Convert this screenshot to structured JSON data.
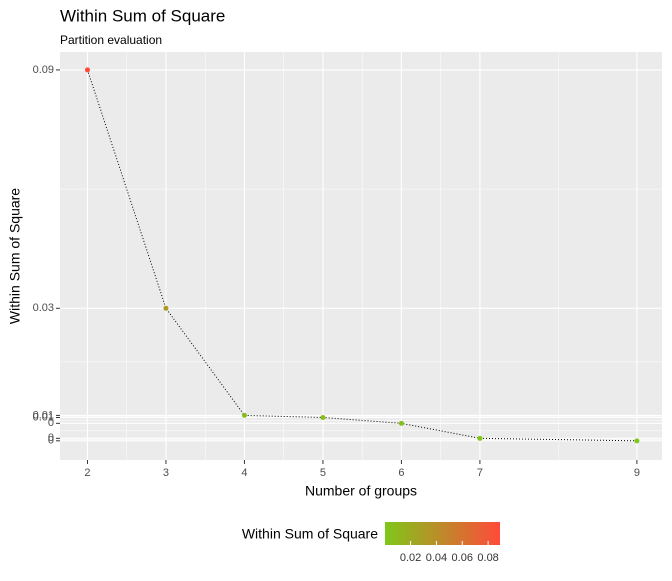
{
  "chart_data": {
    "type": "line",
    "title": "Within Sum of Square",
    "subtitle": "Partition evaluation",
    "x_label": "Number of groups",
    "y_label": "Within Sum of Square",
    "x": [
      2,
      3,
      4,
      5,
      6,
      7,
      9
    ],
    "values": [
      0.0892,
      0.032,
      0.0063,
      0.0058,
      0.0044,
      0.0008,
      0.0002
    ],
    "xlim": [
      1.65,
      9.32
    ],
    "ylim": [
      -0.0044,
      0.0935
    ],
    "xticks": [
      2,
      3,
      4,
      5,
      6,
      7,
      9
    ],
    "yticks": [
      {
        "value": 0.0892,
        "label": "0.09"
      },
      {
        "value": 0.032,
        "label": "0.03"
      },
      {
        "value": 0.0063,
        "label": "0.01"
      },
      {
        "value": 0.0058,
        "label": "0.01"
      },
      {
        "value": 0.0044,
        "label": "0"
      },
      {
        "value": 0.0008,
        "label": "0"
      },
      {
        "value": 0.0002,
        "label": "0"
      }
    ],
    "grid": true,
    "line_color": "#000000",
    "color_low": "#7FC71A",
    "color_high": "#FF4A3A",
    "legend": {
      "title": "Within Sum of Square",
      "position": "bottom",
      "ticks": [
        0.02,
        0.04,
        0.06,
        0.08
      ]
    }
  }
}
